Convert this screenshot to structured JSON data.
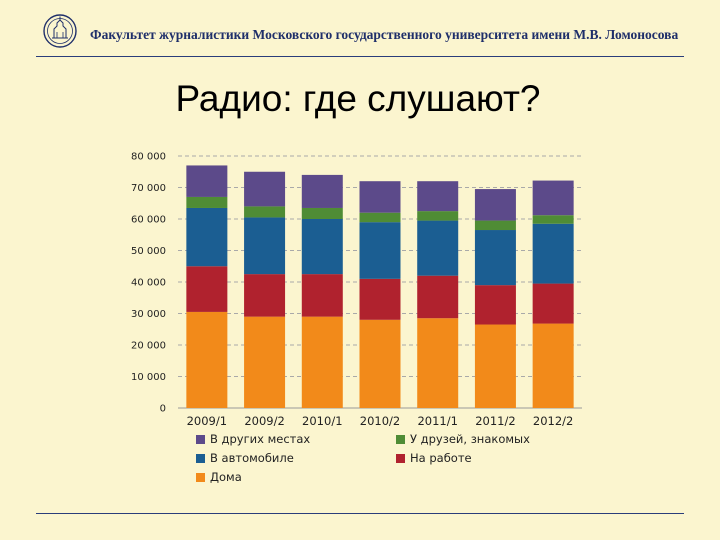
{
  "header": {
    "institution": "Факультет журналистики Московского государственного университета имени М.В. Ломоносова",
    "logo_icon": "msu-emblem-icon"
  },
  "slide": {
    "title": "Радио: где слушают?"
  },
  "colors": {
    "background": "#fbf5cf",
    "header_text": "#1f2f6a",
    "rule": "#2a3d7a",
    "home": "#f28a1a",
    "work": "#b0222e",
    "car": "#1b5e92",
    "friends": "#4f8c35",
    "other": "#5c4a8a"
  },
  "chart_data": {
    "type": "bar",
    "stacked": true,
    "categories": [
      "2009/1",
      "2009/2",
      "2010/1",
      "2010/2",
      "2011/1",
      "2011/2",
      "2012/2"
    ],
    "series": [
      {
        "name": "Дома",
        "color": "#f28a1a",
        "values": [
          30500,
          29000,
          29000,
          28000,
          28500,
          26500,
          26800
        ]
      },
      {
        "name": "На работе",
        "color": "#b0222e",
        "values": [
          14500,
          13500,
          13500,
          13000,
          13500,
          12500,
          12700
        ]
      },
      {
        "name": "В автомобиле",
        "color": "#1b5e92",
        "values": [
          18500,
          18000,
          17500,
          18000,
          17500,
          17500,
          19000
        ]
      },
      {
        "name": "У друзей, знакомых",
        "color": "#4f8c35",
        "values": [
          3500,
          3500,
          3500,
          3000,
          3000,
          3000,
          2700
        ]
      },
      {
        "name": "В других местах",
        "color": "#5c4a8a",
        "values": [
          10000,
          11000,
          10500,
          10000,
          9500,
          10000,
          11000
        ]
      }
    ],
    "ylim": [
      0,
      80000
    ],
    "yticks": [
      "0",
      "10 000",
      "20 000",
      "30 000",
      "40 000",
      "50 000",
      "60 000",
      "70 000",
      "80 000"
    ],
    "grid": true,
    "legend": [
      {
        "name": "В других местах",
        "color": "#5c4a8a"
      },
      {
        "name": "У друзей, знакомых",
        "color": "#4f8c35"
      },
      {
        "name": "В автомобиле",
        "color": "#1b5e92"
      },
      {
        "name": "На работе",
        "color": "#b0222e"
      },
      {
        "name": "Дома",
        "color": "#f28a1a"
      }
    ],
    "legend_position": "bottom"
  }
}
